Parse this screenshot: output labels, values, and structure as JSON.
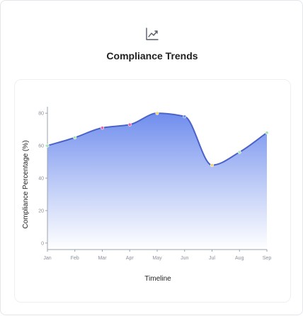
{
  "header": {
    "icon": "trending-up-icon",
    "title": "Compliance Trends"
  },
  "chart_data": {
    "type": "area",
    "title": "Compliance Trends",
    "xlabel": "Timeline",
    "ylabel": "Compliance Percentage (%)",
    "categories": [
      "Jan",
      "Feb",
      "Mar",
      "Apr",
      "May",
      "Jun",
      "Jul",
      "Aug",
      "Sep"
    ],
    "yticks": [
      0,
      20,
      40,
      60,
      80
    ],
    "ylim": [
      -4,
      84
    ],
    "grid": false,
    "legend": "none",
    "series": [
      {
        "values": [
          60,
          65,
          71,
          73,
          80,
          78,
          48,
          56,
          68
        ],
        "point_colors": [
          "#a3e4b0",
          "#a3e4b0",
          "#f0609e",
          "#f0609e",
          "#f3d36b",
          "#6f8fe8",
          "#f3d36b",
          "#a3e4b0",
          "#a3e4b0"
        ]
      }
    ],
    "colors": {
      "line": "#4b63c9",
      "fill_top": "#6f8ded",
      "fill_bottom": "#ffffff",
      "axis": "#9aa3ad"
    }
  }
}
